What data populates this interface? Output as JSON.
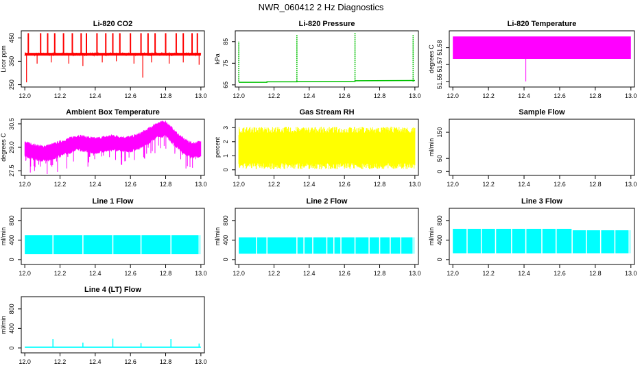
{
  "page": {
    "title": "NWR_060412  2 Hz Diagnostics"
  },
  "chart_data": [
    {
      "type": "line",
      "title": "Li-820 CO2",
      "ylabel": "Licor ppm",
      "color": "#ff0000",
      "xlim": [
        11.98,
        13.02
      ],
      "ylim": [
        240,
        480
      ],
      "x_ticks": [
        "12.0",
        "12.2",
        "12.4",
        "12.6",
        "12.8",
        "13.0"
      ],
      "x_tick_values": [
        12.0,
        12.2,
        12.4,
        12.6,
        12.8,
        13.0
      ],
      "y_ticks": [
        "250",
        "350",
        "450"
      ],
      "y_tick_values": [
        250,
        350,
        450
      ],
      "series": [
        {
          "baseline": 380,
          "noise": 6,
          "spikes_up": [
            12.02,
            12.09,
            12.13,
            12.17,
            12.22,
            12.27,
            12.32,
            12.35,
            12.41,
            12.46,
            12.5,
            12.54,
            12.6,
            12.66,
            12.7,
            12.74,
            12.8,
            12.86,
            12.9,
            12.95,
            12.98
          ],
          "spike_up_value": 470,
          "spikes_down": [
            12.01,
            12.07,
            12.15,
            12.25,
            12.33,
            12.44,
            12.52,
            12.62,
            12.67,
            12.72,
            12.82,
            12.9,
            12.99
          ],
          "spike_down_values": [
            260,
            340,
            345,
            340,
            330,
            345,
            350,
            340,
            280,
            345,
            340,
            345,
            335
          ]
        }
      ]
    },
    {
      "type": "line",
      "title": "Li-820 Pressure",
      "ylabel": "kPa",
      "color": "#00c000",
      "xlim": [
        11.98,
        13.02
      ],
      "ylim": [
        64,
        90
      ],
      "x_ticks": [
        "12.0",
        "12.2",
        "12.4",
        "12.6",
        "12.8",
        "13.0"
      ],
      "x_tick_values": [
        12.0,
        12.2,
        12.4,
        12.6,
        12.8,
        13.0
      ],
      "y_ticks": [
        "65",
        "75",
        "85"
      ],
      "y_tick_values": [
        65,
        75,
        85
      ],
      "series": [
        {
          "segments": [
            [
              12.0,
              66.2
            ],
            [
              12.16,
              66.2
            ],
            [
              12.16,
              66.4
            ],
            [
              12.33,
              66.4
            ],
            [
              12.33,
              66.5
            ],
            [
              12.66,
              66.6
            ],
            [
              12.66,
              66.9
            ],
            [
              13.0,
              67.0
            ]
          ],
          "spikes_up": [
            12.0,
            12.33,
            12.66,
            12.99
          ],
          "spike_up_values": [
            85,
            88,
            89,
            88
          ]
        }
      ]
    },
    {
      "type": "area",
      "title": "Li-820 Temperature",
      "ylabel": "degrees C",
      "color": "#ff00ff",
      "xlim": [
        11.98,
        13.02
      ],
      "ylim": [
        51.545,
        51.595
      ],
      "x_ticks": [
        "12.0",
        "12.2",
        "12.4",
        "12.6",
        "12.8",
        "13.0"
      ],
      "x_tick_values": [
        12.0,
        12.2,
        12.4,
        12.6,
        12.8,
        13.0
      ],
      "y_ticks": [
        "51.55",
        "51.57",
        "51.58"
      ],
      "y_tick_values": [
        51.55,
        51.565,
        51.58
      ],
      "series": [
        {
          "band": [
            51.57,
            51.59
          ],
          "spikes_down": [
            12.41
          ],
          "spike_down_values": [
            51.55
          ]
        }
      ]
    },
    {
      "type": "area",
      "title": "Ambient Box Temperature",
      "ylabel": "degrees C",
      "color": "#ff00ff",
      "xlim": [
        11.98,
        13.02
      ],
      "ylim": [
        27.2,
        30.8
      ],
      "x_ticks": [
        "12.0",
        "12.2",
        "12.4",
        "12.6",
        "12.8",
        "13.0"
      ],
      "x_tick_values": [
        12.0,
        12.2,
        12.4,
        12.6,
        12.8,
        13.0
      ],
      "y_ticks": [
        "27.5",
        "29.0",
        "30.5"
      ],
      "y_tick_values": [
        27.5,
        29.0,
        30.5
      ],
      "series": [
        {
          "x": [
            12.0,
            12.05,
            12.1,
            12.15,
            12.2,
            12.25,
            12.3,
            12.35,
            12.4,
            12.45,
            12.5,
            12.55,
            12.6,
            12.65,
            12.7,
            12.75,
            12.8,
            12.85,
            12.9,
            12.95,
            13.0
          ],
          "center": [
            28.9,
            28.7,
            28.6,
            28.7,
            28.9,
            29.1,
            29.3,
            29.2,
            29.1,
            29.2,
            29.3,
            29.2,
            29.2,
            29.4,
            29.7,
            30.1,
            30.2,
            29.6,
            29.1,
            28.8,
            28.9
          ],
          "halfwidth": 0.45,
          "spike_depth": 1.0
        }
      ]
    },
    {
      "type": "area",
      "title": "Gas Stream RH",
      "ylabel": "percent",
      "color": "#ffff00",
      "xlim": [
        11.98,
        13.02
      ],
      "ylim": [
        -0.4,
        3.6
      ],
      "x_ticks": [
        "12.0",
        "12.2",
        "12.4",
        "12.6",
        "12.8",
        "13.0"
      ],
      "x_tick_values": [
        12.0,
        12.2,
        12.4,
        12.6,
        12.8,
        13.0
      ],
      "y_ticks": [
        "0",
        "1",
        "2",
        "3"
      ],
      "y_tick_values": [
        0,
        1,
        2,
        3
      ],
      "series": [
        {
          "center": 1.55,
          "halfwidth": 1.1,
          "noise": 0.6
        }
      ]
    },
    {
      "type": "line",
      "title": "Sample Flow",
      "ylabel": "ml/min",
      "color": "#00ffff",
      "xlim": [
        11.98,
        13.02
      ],
      "ylim": [
        -15,
        200
      ],
      "x_ticks": [
        "12.0",
        "12.2",
        "12.4",
        "12.6",
        "12.8",
        "13.0"
      ],
      "x_tick_values": [
        12.0,
        12.2,
        12.4,
        12.6,
        12.8,
        13.0
      ],
      "y_ticks": [
        "0",
        "50",
        "150"
      ],
      "y_tick_values": [
        0,
        50,
        150
      ],
      "series": []
    },
    {
      "type": "area",
      "title": "Line 1 Flow",
      "ylabel": "ml/min",
      "color": "#00ffff",
      "xlim": [
        11.98,
        13.02
      ],
      "ylim": [
        -100,
        1050
      ],
      "x_ticks": [
        "12.0",
        "12.2",
        "12.4",
        "12.6",
        "12.8",
        "13.0"
      ],
      "x_tick_values": [
        12.0,
        12.2,
        12.4,
        12.6,
        12.8,
        13.0
      ],
      "y_ticks": [
        "0",
        "400",
        "800"
      ],
      "y_tick_values": [
        0,
        400,
        800
      ],
      "series": [
        {
          "band": [
            110,
            500
          ],
          "x_range": [
            12.0,
            13.0
          ],
          "gaps": [
            12.16,
            12.33,
            12.5,
            12.66,
            12.83,
            12.99
          ]
        }
      ]
    },
    {
      "type": "area",
      "title": "Line 2 Flow",
      "ylabel": "ml/min",
      "color": "#00ffff",
      "xlim": [
        11.98,
        13.02
      ],
      "ylim": [
        -100,
        1050
      ],
      "x_ticks": [
        "12.0",
        "12.2",
        "12.4",
        "12.6",
        "12.8",
        "13.0"
      ],
      "x_tick_values": [
        12.0,
        12.2,
        12.4,
        12.6,
        12.8,
        13.0
      ],
      "y_ticks": [
        "0",
        "400",
        "800"
      ],
      "y_tick_values": [
        0,
        400,
        800
      ],
      "series": [
        {
          "band": [
            120,
            455
          ],
          "x_range": [
            12.0,
            13.0
          ],
          "gaps": [
            12.1,
            12.16,
            12.33,
            12.37,
            12.42,
            12.5,
            12.54,
            12.58,
            12.66,
            12.74,
            12.8,
            12.86,
            12.92,
            12.99
          ]
        }
      ]
    },
    {
      "type": "area",
      "title": "Line 3 Flow",
      "ylabel": "ml/min",
      "color": "#00ffff",
      "xlim": [
        11.98,
        13.02
      ],
      "ylim": [
        -100,
        1050
      ],
      "x_ticks": [
        "12.0",
        "12.2",
        "12.4",
        "12.6",
        "12.8",
        "13.0"
      ],
      "x_tick_values": [
        12.0,
        12.2,
        12.4,
        12.6,
        12.8,
        13.0
      ],
      "y_ticks": [
        "0",
        "400",
        "800"
      ],
      "y_tick_values": [
        0,
        400,
        800
      ],
      "series": [
        {
          "band": [
            130,
            630
          ],
          "x_range": [
            12.0,
            13.0
          ],
          "top_step": [
            [
              12.0,
              630
            ],
            [
              12.67,
              630
            ],
            [
              12.67,
              600
            ],
            [
              13.0,
              600
            ]
          ],
          "gaps": [
            12.08,
            12.16,
            12.24,
            12.33,
            12.41,
            12.5,
            12.58,
            12.67,
            12.75,
            12.83,
            12.91,
            12.99
          ]
        }
      ]
    },
    {
      "type": "line",
      "title": "Line 4 (LT) Flow",
      "ylabel": "ml/min",
      "color": "#00ffff",
      "xlim": [
        11.98,
        13.02
      ],
      "ylim": [
        -100,
        1050
      ],
      "x_ticks": [
        "12.0",
        "12.2",
        "12.4",
        "12.6",
        "12.8",
        "13.0"
      ],
      "x_tick_values": [
        12.0,
        12.2,
        12.4,
        12.6,
        12.8,
        13.0
      ],
      "y_ticks": [
        "0",
        "400",
        "800"
      ],
      "y_tick_values": [
        0,
        400,
        800
      ],
      "series": [
        {
          "baseline": 15,
          "spikes_up": [
            12.16,
            12.33,
            12.5,
            12.66,
            12.83,
            12.99
          ],
          "spike_up_values": [
            180,
            110,
            190,
            100,
            180,
            90
          ]
        }
      ]
    }
  ]
}
